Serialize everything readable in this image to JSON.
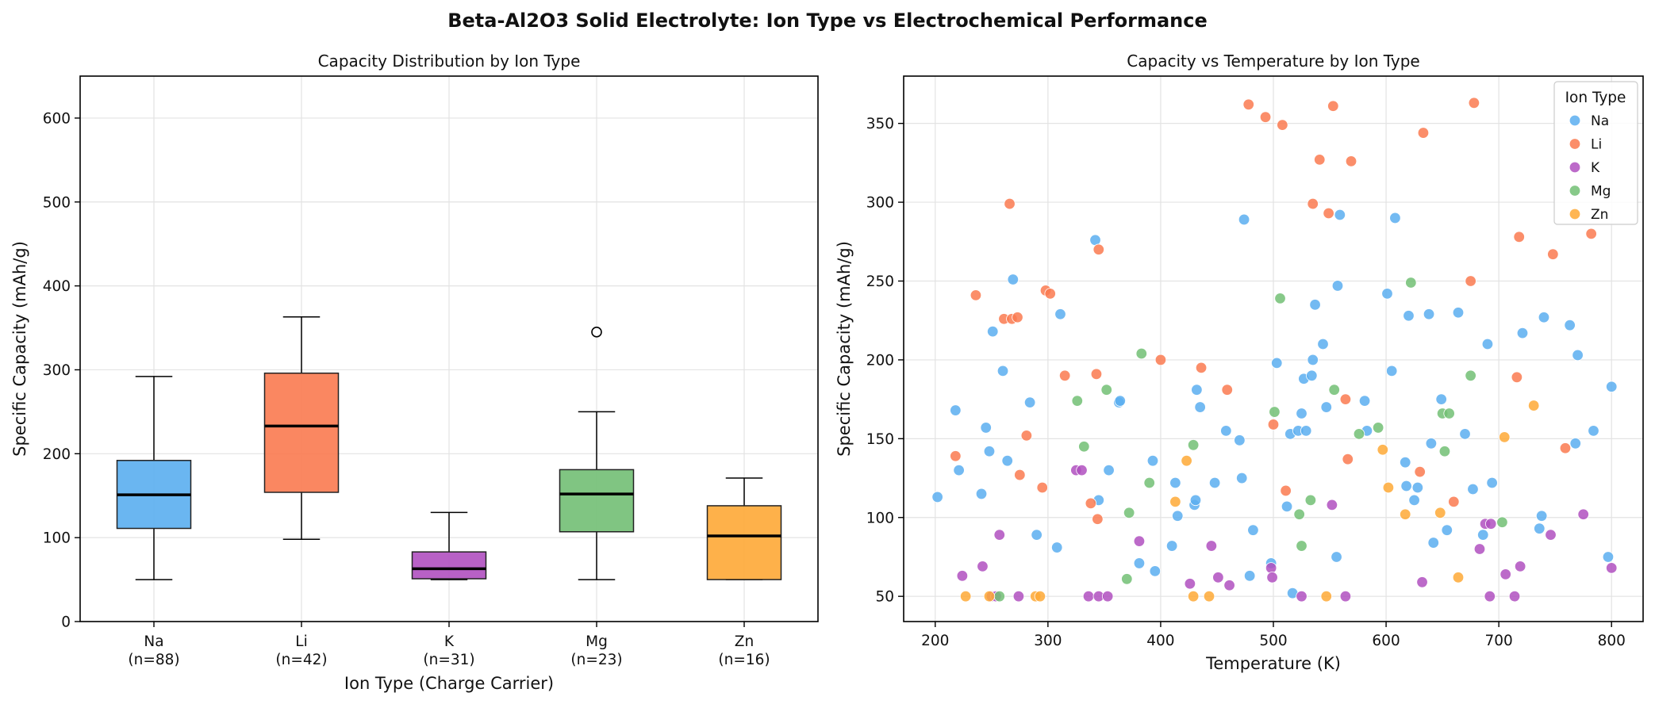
{
  "suptitle": "Beta-Al2O3 Solid Electrolyte: Ion Type vs Electrochemical Performance",
  "colors": {
    "Na": "#5aaef0",
    "Li": "#fa7a50",
    "K": "#b050c0",
    "Mg": "#72bf74",
    "Zn": "#fea936"
  },
  "chart_data": [
    {
      "type": "box",
      "title": "Capacity Distribution by Ion Type",
      "xlabel": "Ion Type (Charge Carrier)",
      "ylabel": "Specific Capacity (mAh/g)",
      "ylim": [
        0,
        650
      ],
      "yticks": [
        0,
        100,
        200,
        300,
        400,
        500,
        600
      ],
      "grid": true,
      "categories": [
        "Na",
        "Li",
        "K",
        "Mg",
        "Zn"
      ],
      "counts": [
        "(n=88)",
        "(n=42)",
        "(n=31)",
        "(n=23)",
        "(n=16)"
      ],
      "boxes": [
        {
          "name": "Na",
          "whisker_low": 50,
          "q1": 111,
          "median": 151,
          "q3": 192,
          "whisker_high": 292,
          "outliers": []
        },
        {
          "name": "Li",
          "whisker_low": 98,
          "q1": 154,
          "median": 233,
          "q3": 296,
          "whisker_high": 363,
          "outliers": []
        },
        {
          "name": "K",
          "whisker_low": 50,
          "q1": 51,
          "median": 63,
          "q3": 83,
          "whisker_high": 130,
          "outliers": []
        },
        {
          "name": "Mg",
          "whisker_low": 50,
          "q1": 107,
          "median": 152,
          "q3": 181,
          "whisker_high": 250,
          "outliers": [
            345
          ]
        },
        {
          "name": "Zn",
          "whisker_low": 50,
          "q1": 50,
          "median": 102,
          "q3": 138,
          "whisker_high": 171,
          "outliers": []
        }
      ]
    },
    {
      "type": "scatter",
      "title": "Capacity vs Temperature by Ion Type",
      "xlabel": "Temperature (K)",
      "ylabel": "Specific Capacity (mAh/g)",
      "xlim": [
        172,
        828
      ],
      "ylim": [
        34,
        380
      ],
      "xticks": [
        200,
        300,
        400,
        500,
        600,
        700,
        800
      ],
      "yticks": [
        50,
        100,
        150,
        200,
        250,
        300,
        350
      ],
      "grid": true,
      "legend_title": "Ion Type",
      "legend_location": "top-right",
      "series": [
        {
          "name": "Na",
          "points": [
            [
              202,
              113
            ],
            [
              218,
              168
            ],
            [
              221,
              130
            ],
            [
              241,
              115
            ],
            [
              245,
              157
            ],
            [
              248,
              142
            ],
            [
              251,
              218
            ],
            [
              260,
              193
            ],
            [
              264,
              136
            ],
            [
              269,
              251
            ],
            [
              284,
              173
            ],
            [
              290,
              89
            ],
            [
              308,
              81
            ],
            [
              311,
              229
            ],
            [
              342,
              276
            ],
            [
              345,
              111
            ],
            [
              354,
              130
            ],
            [
              363,
              173
            ],
            [
              364,
              174
            ],
            [
              381,
              71
            ],
            [
              393,
              136
            ],
            [
              395,
              66
            ],
            [
              410,
              82
            ],
            [
              413,
              122
            ],
            [
              415,
              101
            ],
            [
              430,
              108
            ],
            [
              431,
              111
            ],
            [
              432,
              181
            ],
            [
              435,
              170
            ],
            [
              448,
              122
            ],
            [
              458,
              155
            ],
            [
              470,
              149
            ],
            [
              472,
              125
            ],
            [
              474,
              289
            ],
            [
              479,
              63
            ],
            [
              482,
              92
            ],
            [
              498,
              71
            ],
            [
              503,
              198
            ],
            [
              512,
              107
            ],
            [
              515,
              153
            ],
            [
              517,
              52
            ],
            [
              522,
              155
            ],
            [
              525,
              166
            ],
            [
              527,
              188
            ],
            [
              529,
              155
            ],
            [
              534,
              190
            ],
            [
              535,
              200
            ],
            [
              537,
              235
            ],
            [
              544,
              210
            ],
            [
              547,
              170
            ],
            [
              556,
              75
            ],
            [
              557,
              247
            ],
            [
              559,
              292
            ],
            [
              581,
              174
            ],
            [
              583,
              155
            ],
            [
              601,
              242
            ],
            [
              605,
              193
            ],
            [
              608,
              290
            ],
            [
              617,
              135
            ],
            [
              618,
              120
            ],
            [
              620,
              228
            ],
            [
              625,
              111
            ],
            [
              628,
              119
            ],
            [
              638,
              229
            ],
            [
              640,
              147
            ],
            [
              642,
              84
            ],
            [
              649,
              175
            ],
            [
              654,
              92
            ],
            [
              664,
              230
            ],
            [
              670,
              153
            ],
            [
              677,
              118
            ],
            [
              686,
              89
            ],
            [
              690,
              210
            ],
            [
              694,
              122
            ],
            [
              721,
              217
            ],
            [
              736,
              93
            ],
            [
              738,
              101
            ],
            [
              740,
              227
            ],
            [
              763,
              222
            ],
            [
              768,
              147
            ],
            [
              770,
              203
            ],
            [
              784,
              155
            ],
            [
              797,
              75
            ],
            [
              800,
              183
            ]
          ]
        },
        {
          "name": "Li",
          "points": [
            [
              218,
              139
            ],
            [
              236,
              241
            ],
            [
              261,
              226
            ],
            [
              266,
              299
            ],
            [
              268,
              226
            ],
            [
              273,
              227
            ],
            [
              275,
              127
            ],
            [
              281,
              152
            ],
            [
              295,
              119
            ],
            [
              298,
              244
            ],
            [
              302,
              242
            ],
            [
              315,
              190
            ],
            [
              338,
              109
            ],
            [
              343,
              191
            ],
            [
              344,
              99
            ],
            [
              345,
              270
            ],
            [
              400,
              200
            ],
            [
              436,
              195
            ],
            [
              459,
              181
            ],
            [
              478,
              362
            ],
            [
              493,
              354
            ],
            [
              500,
              159
            ],
            [
              508,
              349
            ],
            [
              511,
              117
            ],
            [
              535,
              299
            ],
            [
              541,
              327
            ],
            [
              549,
              293
            ],
            [
              553,
              361
            ],
            [
              564,
              175
            ],
            [
              566,
              137
            ],
            [
              569,
              326
            ],
            [
              630,
              129
            ],
            [
              633,
              344
            ],
            [
              660,
              110
            ],
            [
              675,
              250
            ],
            [
              678,
              363
            ],
            [
              716,
              189
            ],
            [
              718,
              278
            ],
            [
              748,
              267
            ],
            [
              759,
              144
            ],
            [
              782,
              280
            ]
          ]
        },
        {
          "name": "K",
          "points": [
            [
              224,
              63
            ],
            [
              242,
              69
            ],
            [
              250,
              50
            ],
            [
              254,
              50
            ],
            [
              257,
              89
            ],
            [
              274,
              50
            ],
            [
              325,
              130
            ],
            [
              330,
              130
            ],
            [
              336,
              50
            ],
            [
              345,
              50
            ],
            [
              353,
              50
            ],
            [
              381,
              85
            ],
            [
              426,
              58
            ],
            [
              445,
              82
            ],
            [
              451,
              62
            ],
            [
              461,
              57
            ],
            [
              498,
              68
            ],
            [
              499,
              62
            ],
            [
              525,
              50
            ],
            [
              552,
              108
            ],
            [
              564,
              50
            ],
            [
              632,
              59
            ],
            [
              683,
              80
            ],
            [
              688,
              96
            ],
            [
              692,
              50
            ],
            [
              693,
              96
            ],
            [
              706,
              64
            ],
            [
              714,
              50
            ],
            [
              719,
              69
            ],
            [
              746,
              89
            ],
            [
              775,
              102
            ],
            [
              800,
              68
            ]
          ]
        },
        {
          "name": "Mg",
          "points": [
            [
              257,
              50
            ],
            [
              326,
              174
            ],
            [
              332,
              145
            ],
            [
              352,
              181
            ],
            [
              370,
              61
            ],
            [
              372,
              103
            ],
            [
              383,
              204
            ],
            [
              390,
              122
            ],
            [
              429,
              146
            ],
            [
              501,
              167
            ],
            [
              506,
              239
            ],
            [
              523,
              102
            ],
            [
              525,
              82
            ],
            [
              533,
              111
            ],
            [
              554,
              181
            ],
            [
              576,
              153
            ],
            [
              593,
              157
            ],
            [
              622,
              249
            ],
            [
              650,
              166
            ],
            [
              652,
              142
            ],
            [
              656,
              166
            ],
            [
              675,
              190
            ],
            [
              703,
              97
            ]
          ]
        },
        {
          "name": "Zn",
          "points": [
            [
              227,
              50
            ],
            [
              248,
              50
            ],
            [
              289,
              50
            ],
            [
              293,
              50
            ],
            [
              413,
              110
            ],
            [
              423,
              136
            ],
            [
              429,
              50
            ],
            [
              443,
              50
            ],
            [
              547,
              50
            ],
            [
              597,
              143
            ],
            [
              602,
              119
            ],
            [
              617,
              102
            ],
            [
              648,
              103
            ],
            [
              664,
              62
            ],
            [
              705,
              151
            ],
            [
              731,
              171
            ]
          ]
        }
      ]
    }
  ]
}
